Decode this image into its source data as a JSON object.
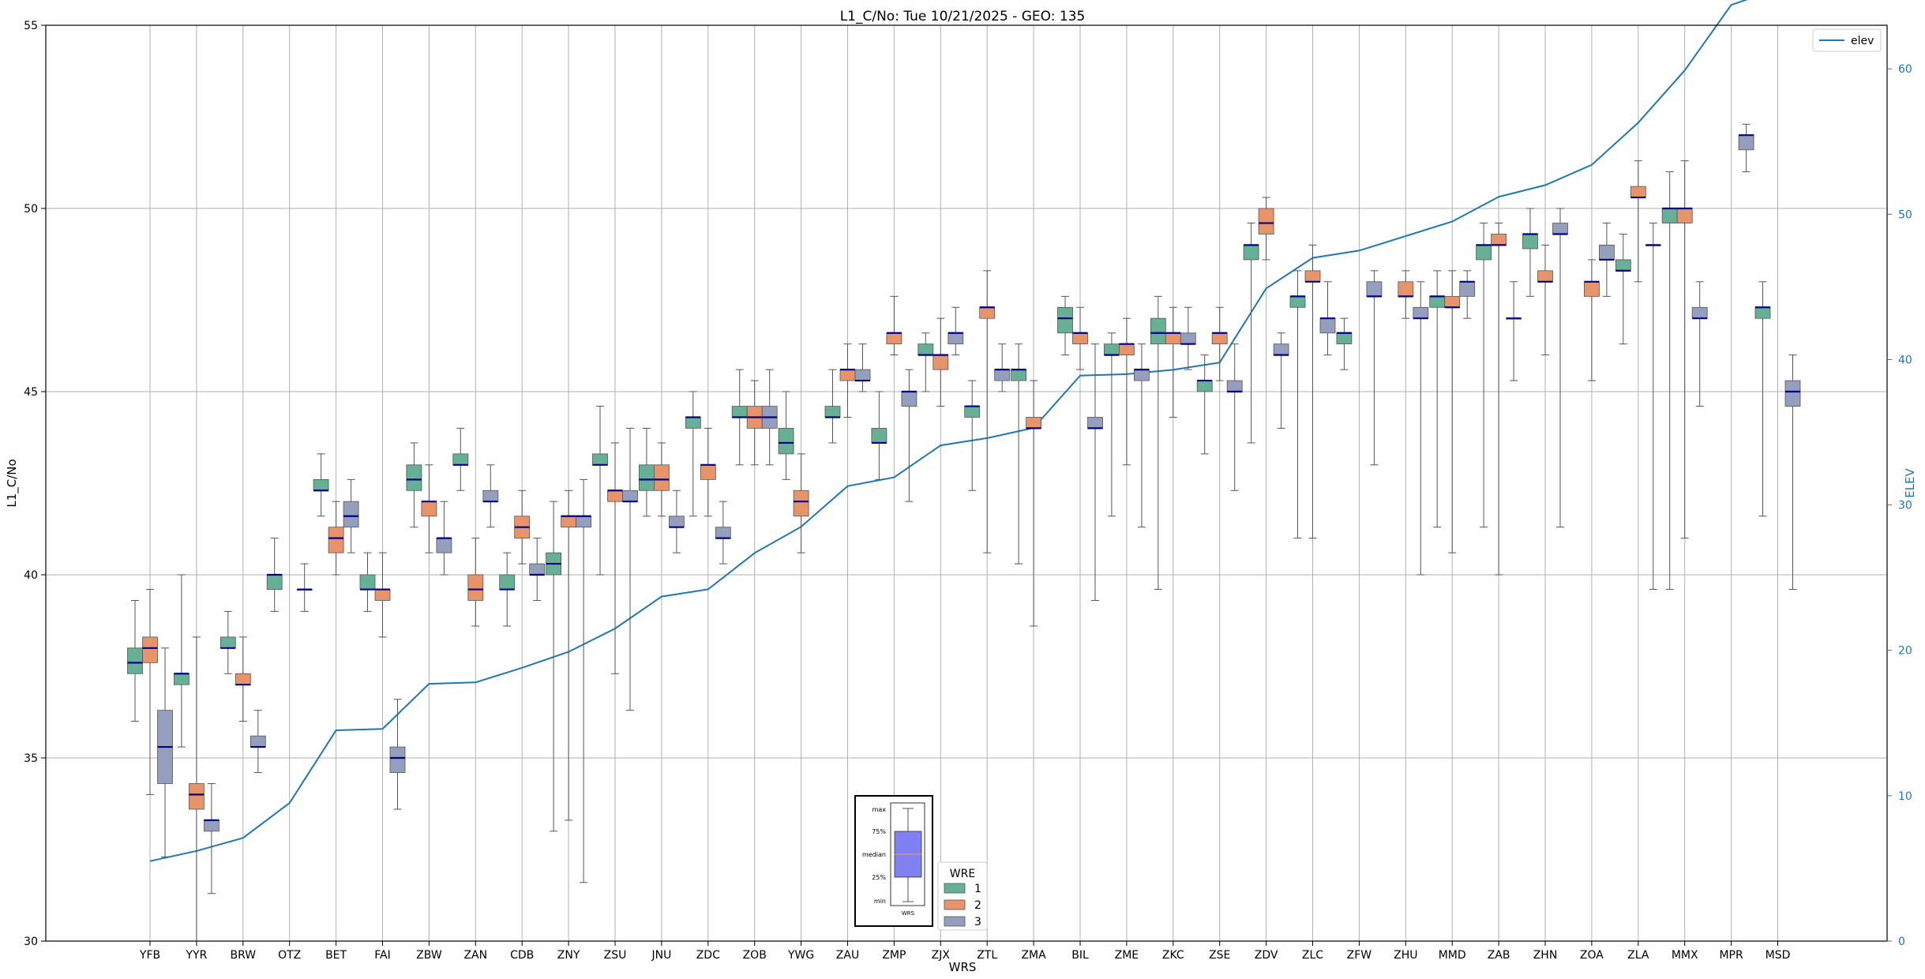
{
  "chart_data": {
    "type": "box",
    "title": "L1_C/No: Tue 10/21/2025 - GEO: 135",
    "xlabel": "WRS",
    "ylabel": "L1_C/No",
    "y2label": "ELEV",
    "ylim": [
      30,
      55
    ],
    "y2lim": [
      0,
      63
    ],
    "yticks": [
      "30",
      "35",
      "40",
      "45",
      "50",
      "55"
    ],
    "y2ticks": [
      "0",
      "10",
      "20",
      "30",
      "40",
      "50",
      "60"
    ],
    "grid": true,
    "categories": [
      "YFB",
      "YYR",
      "BRW",
      "OTZ",
      "BET",
      "FAI",
      "ZBW",
      "ZAN",
      "CDB",
      "ZNY",
      "ZSU",
      "JNU",
      "ZDC",
      "ZOB",
      "YWG",
      "ZAU",
      "ZMP",
      "ZJX",
      "ZTL",
      "ZMA",
      "BIL",
      "ZME",
      "ZKC",
      "ZSE",
      "ZDV",
      "ZLC",
      "ZFW",
      "ZHU",
      "MMD",
      "ZAB",
      "ZHN",
      "ZOA",
      "ZLA",
      "MMX",
      "MPR",
      "MSD"
    ],
    "wre_colors": {
      "1": "#66b096",
      "2": "#e8946a",
      "3": "#949fbd"
    },
    "series": [
      {
        "name": "1",
        "boxes": [
          [
            "YFB",
            36.0,
            37.3,
            37.6,
            38.0,
            39.3
          ],
          [
            "YYR",
            35.3,
            37.0,
            37.3,
            37.3,
            40.0
          ],
          [
            "BRW",
            37.3,
            38.0,
            38.0,
            38.3,
            39.0
          ],
          [
            "OTZ",
            39.0,
            39.6,
            40.0,
            40.0,
            41.0
          ],
          [
            "BET",
            41.6,
            42.3,
            42.3,
            42.6,
            43.3
          ],
          [
            "FAI",
            39.0,
            39.6,
            39.6,
            40.0,
            40.6
          ],
          [
            "ZBW",
            41.3,
            42.3,
            42.6,
            43.0,
            43.6
          ],
          [
            "ZAN",
            42.3,
            43.0,
            43.0,
            43.3,
            44.0
          ],
          [
            "CDB",
            38.6,
            39.6,
            39.6,
            40.0,
            40.6
          ],
          [
            "ZNY",
            33.0,
            40.0,
            40.3,
            40.6,
            42.0
          ],
          [
            "ZSU",
            40.0,
            43.0,
            43.0,
            43.3,
            44.6
          ],
          [
            "JNU",
            41.6,
            42.3,
            42.6,
            43.0,
            44.0
          ],
          [
            "ZDC",
            41.6,
            44.0,
            44.3,
            44.3,
            45.0
          ],
          [
            "ZOB",
            43.0,
            44.3,
            44.3,
            44.6,
            45.6
          ],
          [
            "YWG",
            42.6,
            43.3,
            43.6,
            44.0,
            45.0
          ],
          [
            "ZAU",
            43.6,
            44.3,
            44.3,
            44.6,
            45.6
          ],
          [
            "ZMP",
            42.6,
            43.6,
            43.6,
            44.0,
            45.0
          ],
          [
            "ZJX",
            45.0,
            46.0,
            46.0,
            46.3,
            46.6
          ],
          [
            "ZTL",
            42.3,
            44.3,
            44.6,
            44.6,
            45.3
          ],
          [
            "ZMA",
            40.3,
            45.3,
            45.6,
            45.6,
            46.3
          ],
          [
            "BIL",
            46.0,
            46.6,
            47.0,
            47.3,
            47.6
          ],
          [
            "ZME",
            41.6,
            46.0,
            46.0,
            46.3,
            46.6
          ],
          [
            "ZKC",
            39.6,
            46.3,
            46.6,
            47.0,
            47.6
          ],
          [
            "ZSE",
            43.3,
            45.0,
            45.3,
            45.3,
            46.0
          ],
          [
            "ZDV",
            43.6,
            48.6,
            49.0,
            49.0,
            49.6
          ],
          [
            "ZLC",
            41.0,
            47.3,
            47.6,
            47.6,
            48.3
          ],
          [
            "ZFW",
            45.6,
            46.3,
            46.6,
            46.6,
            47.0
          ],
          [
            "MMD",
            41.3,
            47.3,
            47.6,
            47.6,
            48.3
          ],
          [
            "ZAB",
            41.3,
            48.6,
            49.0,
            49.0,
            49.6
          ],
          [
            "ZHN",
            47.6,
            48.9,
            49.3,
            49.3,
            50.0
          ],
          [
            "ZLA",
            46.3,
            48.3,
            48.3,
            48.6,
            49.3
          ],
          [
            "MMX",
            39.6,
            49.6,
            50.0,
            50.0,
            51.0
          ],
          [
            "MSD",
            41.6,
            47.0,
            47.3,
            47.3,
            48.0
          ]
        ]
      },
      {
        "name": "2",
        "boxes": [
          [
            "YFB",
            34.0,
            37.6,
            38.0,
            38.3,
            39.6
          ],
          [
            "YYR",
            30.0,
            33.6,
            34.0,
            34.3,
            38.3
          ],
          [
            "BRW",
            36.0,
            37.0,
            37.0,
            37.3,
            38.3
          ],
          [
            "BET",
            40.0,
            40.6,
            41.0,
            41.3,
            42.0
          ],
          [
            "FAI",
            38.3,
            39.3,
            39.6,
            39.6,
            40.6
          ],
          [
            "ZBW",
            40.6,
            41.6,
            42.0,
            42.0,
            43.0
          ],
          [
            "ZAN",
            38.6,
            39.3,
            39.6,
            40.0,
            41.0
          ],
          [
            "CDB",
            40.3,
            41.0,
            41.3,
            41.6,
            42.3
          ],
          [
            "ZNY",
            33.3,
            41.3,
            41.6,
            41.6,
            42.3
          ],
          [
            "ZSU",
            37.3,
            42.0,
            42.3,
            42.3,
            43.6
          ],
          [
            "JNU",
            41.6,
            42.3,
            42.6,
            43.0,
            43.6
          ],
          [
            "ZDC",
            41.6,
            42.6,
            43.0,
            43.0,
            44.0
          ],
          [
            "ZOB",
            43.0,
            44.0,
            44.3,
            44.6,
            45.3
          ],
          [
            "YWG",
            40.6,
            41.6,
            42.0,
            42.3,
            43.3
          ],
          [
            "ZAU",
            44.3,
            45.3,
            45.6,
            45.6,
            46.3
          ],
          [
            "ZMP",
            46.0,
            46.3,
            46.6,
            46.6,
            47.6
          ],
          [
            "ZJX",
            44.6,
            45.6,
            46.0,
            46.0,
            47.0
          ],
          [
            "ZTL",
            40.6,
            47.0,
            47.3,
            47.3,
            48.3
          ],
          [
            "ZMA",
            38.6,
            44.0,
            44.0,
            44.3,
            45.3
          ],
          [
            "BIL",
            45.6,
            46.3,
            46.6,
            46.6,
            47.3
          ],
          [
            "ZME",
            43.0,
            46.0,
            46.3,
            46.3,
            47.0
          ],
          [
            "ZKC",
            44.3,
            46.3,
            46.6,
            46.6,
            47.3
          ],
          [
            "ZSE",
            45.3,
            46.3,
            46.6,
            46.6,
            47.3
          ],
          [
            "ZDV",
            48.6,
            49.3,
            49.6,
            50.0,
            50.3
          ],
          [
            "ZLC",
            41.0,
            48.0,
            48.0,
            48.3,
            49.0
          ],
          [
            "ZHU",
            47.0,
            47.6,
            47.6,
            48.0,
            48.3
          ],
          [
            "MMD",
            40.6,
            47.3,
            47.3,
            47.6,
            48.3
          ],
          [
            "ZAB",
            40.0,
            49.0,
            49.0,
            49.3,
            49.6
          ],
          [
            "ZHN",
            46.0,
            48.0,
            48.0,
            48.3,
            49.0
          ],
          [
            "ZOA",
            45.3,
            47.6,
            48.0,
            48.0,
            48.6
          ],
          [
            "ZLA",
            48.0,
            50.3,
            50.3,
            50.6,
            51.3
          ],
          [
            "MMX",
            41.0,
            49.6,
            50.0,
            50.0,
            51.3
          ]
        ]
      },
      {
        "name": "3",
        "boxes": [
          [
            "YFB",
            32.3,
            34.3,
            35.3,
            36.3,
            38.0
          ],
          [
            "YYR",
            31.3,
            33.0,
            33.3,
            33.3,
            34.3
          ],
          [
            "BRW",
            34.6,
            35.3,
            35.3,
            35.6,
            36.3
          ],
          [
            "OTZ",
            39.0,
            39.6,
            39.6,
            39.6,
            40.3
          ],
          [
            "BET",
            40.6,
            41.3,
            41.6,
            42.0,
            42.6
          ],
          [
            "FAI",
            33.6,
            34.6,
            35.0,
            35.3,
            36.6
          ],
          [
            "ZBW",
            40.0,
            40.6,
            41.0,
            41.0,
            42.0
          ],
          [
            "ZAN",
            41.3,
            42.0,
            42.0,
            42.3,
            43.0
          ],
          [
            "CDB",
            39.3,
            40.0,
            40.0,
            40.3,
            41.0
          ],
          [
            "ZNY",
            31.6,
            41.3,
            41.6,
            41.6,
            42.6
          ],
          [
            "ZSU",
            36.3,
            42.0,
            42.0,
            42.3,
            44.0
          ],
          [
            "JNU",
            40.6,
            41.3,
            41.3,
            41.6,
            42.3
          ],
          [
            "ZDC",
            40.3,
            41.0,
            41.0,
            41.3,
            42.0
          ],
          [
            "ZOB",
            43.0,
            44.0,
            44.3,
            44.6,
            45.6
          ],
          [
            "ZAU",
            45.0,
            45.3,
            45.3,
            45.6,
            46.3
          ],
          [
            "ZMP",
            42.0,
            44.6,
            45.0,
            45.0,
            45.6
          ],
          [
            "ZJX",
            46.0,
            46.3,
            46.6,
            46.6,
            47.3
          ],
          [
            "ZTL",
            45.0,
            45.3,
            45.6,
            45.6,
            46.3
          ],
          [
            "BIL",
            39.3,
            44.0,
            44.0,
            44.3,
            46.3
          ],
          [
            "ZME",
            41.3,
            45.3,
            45.6,
            45.6,
            46.3
          ],
          [
            "ZKC",
            45.6,
            46.3,
            46.3,
            46.6,
            47.3
          ],
          [
            "ZSE",
            42.3,
            45.0,
            45.0,
            45.3,
            46.3
          ],
          [
            "ZDV",
            44.0,
            46.0,
            46.0,
            46.3,
            46.6
          ],
          [
            "ZLC",
            46.0,
            46.6,
            47.0,
            47.0,
            48.0
          ],
          [
            "ZFW",
            43.0,
            47.6,
            47.6,
            48.0,
            48.3
          ],
          [
            "ZHU",
            40.0,
            47.0,
            47.0,
            47.3,
            48.0
          ],
          [
            "MMD",
            47.0,
            47.6,
            48.0,
            48.0,
            48.3
          ],
          [
            "ZAB",
            45.3,
            47.0,
            47.0,
            47.0,
            48.0
          ],
          [
            "ZHN",
            41.3,
            49.3,
            49.3,
            49.6,
            50.0
          ],
          [
            "ZOA",
            47.6,
            48.6,
            48.6,
            49.0,
            49.6
          ],
          [
            "ZLA",
            39.6,
            49.0,
            49.0,
            49.0,
            49.6
          ],
          [
            "MMX",
            44.6,
            47.0,
            47.0,
            47.3,
            48.0
          ],
          [
            "MPR",
            51.0,
            51.6,
            52.0,
            52.0,
            52.3
          ],
          [
            "MSD",
            39.6,
            44.6,
            45.0,
            45.3,
            46.0
          ]
        ]
      }
    ],
    "elev_series": {
      "name": "elev",
      "values": [
        5.5,
        6.2,
        7.1,
        9.5,
        14.5,
        14.6,
        17.7,
        17.8,
        18.8,
        19.9,
        21.5,
        23.7,
        24.2,
        26.7,
        28.5,
        31.3,
        31.9,
        34.1,
        34.6,
        35.3,
        38.9,
        39.0,
        39.3,
        39.8,
        44.9,
        47.0,
        47.5,
        48.5,
        49.5,
        51.2,
        52.0,
        53.4,
        56.3,
        59.9,
        64.4,
        65.5
      ]
    },
    "legend_wre": {
      "title": "WRE",
      "entries": [
        "1",
        "2",
        "3"
      ],
      "placement": "lower-center"
    },
    "legend_elev": {
      "entries": [
        "elev"
      ],
      "placement": "top-right"
    },
    "inset_key": {
      "labels": [
        "max",
        "75%",
        "median",
        "25%",
        "min"
      ],
      "xlabel": "WRS",
      "placement": "lower-center"
    }
  }
}
